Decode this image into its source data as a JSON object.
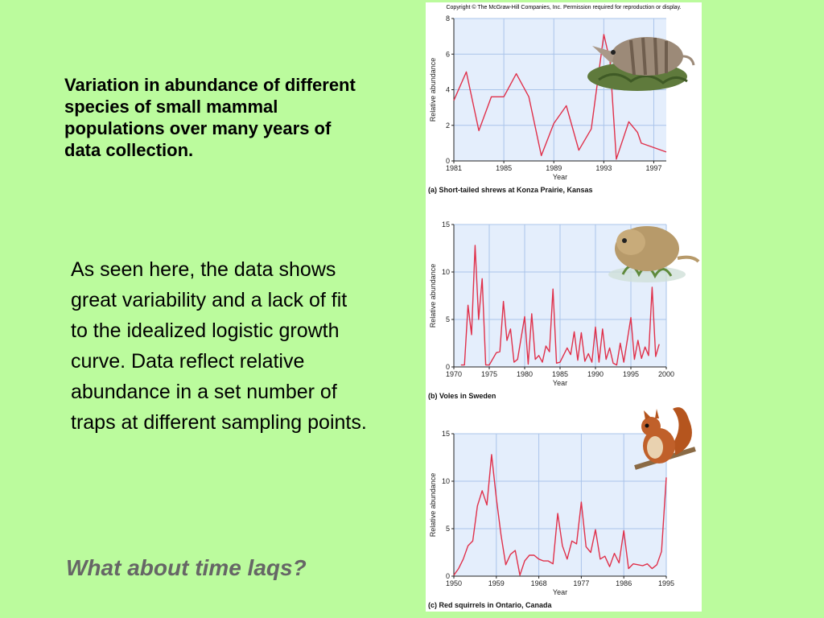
{
  "slide": {
    "heading": "Variation in abundance of different species of small mammal populations over many years of data collection.",
    "body": "As seen here, the data shows great variability and a lack of fit to the idealized logistic growth curve. Data reflect relative abundance in a set number of traps at different sampling points.",
    "question": "What about time laqs?",
    "background_color": "#bbfb9d"
  },
  "figure": {
    "copyright": "Copyright © The McGraw-Hill Companies, Inc. Permission required for reproduction or display."
  },
  "chart_data": [
    {
      "type": "line",
      "caption": "(a) Short-tailed shrews at Konza Prairie, Kansas",
      "xlabel": "Year",
      "ylabel": "Relative abundance",
      "xlim": [
        1981,
        1998
      ],
      "ylim": [
        0,
        8
      ],
      "xticks": [
        1981,
        1985,
        1989,
        1993,
        1997
      ],
      "yticks": [
        0,
        2,
        4,
        6,
        8
      ],
      "line_color": "#e0304a",
      "grid": true,
      "illustration": "shrew-icon",
      "series": [
        {
          "x": [
            1981,
            1982,
            1983,
            1984,
            1985,
            1986,
            1987,
            1988,
            1989,
            1990,
            1991,
            1992,
            1993,
            1993.5,
            1994,
            1995,
            1995.7,
            1996,
            1998
          ],
          "y": [
            3.4,
            5.0,
            1.7,
            3.6,
            3.6,
            4.9,
            3.6,
            0.3,
            2.1,
            3.1,
            0.6,
            1.8,
            7.1,
            5.6,
            0.1,
            2.2,
            1.6,
            1.0,
            0.5
          ]
        }
      ]
    },
    {
      "type": "line",
      "caption": "(b) Voles in Sweden",
      "xlabel": "Year",
      "ylabel": "Relative abundance",
      "xlim": [
        1970,
        2000
      ],
      "ylim": [
        0,
        15
      ],
      "xticks": [
        1970,
        1975,
        1980,
        1985,
        1990,
        1995,
        2000
      ],
      "yticks": [
        0,
        5,
        10,
        15
      ],
      "line_color": "#e0304a",
      "grid": true,
      "illustration": "vole-icon",
      "series": [
        {
          "x": [
            1971,
            1971.5,
            1972,
            1972.5,
            1973,
            1973.5,
            1974,
            1974.5,
            1975,
            1976,
            1976.5,
            1977,
            1977.5,
            1978,
            1978.5,
            1979,
            1980,
            1980.5,
            1981,
            1981.5,
            1982,
            1982.5,
            1983,
            1983.5,
            1984,
            1984.5,
            1985,
            1986,
            1986.5,
            1987,
            1987.5,
            1988,
            1988.5,
            1989,
            1989.5,
            1990,
            1990.5,
            1991,
            1991.5,
            1992,
            1992.5,
            1993,
            1993.5,
            1994,
            1995,
            1995.5,
            1996,
            1996.5,
            1997,
            1997.5,
            1998,
            1998.5,
            1999
          ],
          "y": [
            0.2,
            0.2,
            6.5,
            3.4,
            12.8,
            5.0,
            9.3,
            0.2,
            0.2,
            1.5,
            1.6,
            6.9,
            2.8,
            4.0,
            0.5,
            0.8,
            5.3,
            0.3,
            5.6,
            0.8,
            1.2,
            0.5,
            2.2,
            1.6,
            8.2,
            0.4,
            0.5,
            2.0,
            1.3,
            3.7,
            0.7,
            3.6,
            0.6,
            1.4,
            0.5,
            4.2,
            0.5,
            4.0,
            0.8,
            2.0,
            0.4,
            0.2,
            2.5,
            0.5,
            5.2,
            0.8,
            2.8,
            0.9,
            2.1,
            1.2,
            8.4,
            1.1,
            2.4
          ]
        }
      ]
    },
    {
      "type": "line",
      "caption": "(c) Red squirrels in Ontario, Canada",
      "xlabel": "Year",
      "ylabel": "Relative abundance",
      "xlim": [
        1950,
        1995
      ],
      "ylim": [
        0,
        15
      ],
      "xticks": [
        1950,
        1959,
        1968,
        1977,
        1986,
        1995
      ],
      "yticks": [
        0,
        5,
        10,
        15
      ],
      "line_color": "#e0304a",
      "grid": true,
      "illustration": "squirrel-icon",
      "series": [
        {
          "x": [
            1950,
            1951,
            1952,
            1953,
            1954,
            1955,
            1956,
            1957,
            1958,
            1959,
            1960,
            1961,
            1962,
            1963,
            1964,
            1965,
            1966,
            1967,
            1968,
            1969,
            1970,
            1971,
            1972,
            1973,
            1974,
            1975,
            1976,
            1977,
            1978,
            1979,
            1980,
            1981,
            1982,
            1983,
            1984,
            1985,
            1986,
            1987,
            1988,
            1989,
            1990,
            1991,
            1992,
            1993,
            1994,
            1995
          ],
          "y": [
            0.1,
            0.8,
            1.8,
            3.2,
            3.7,
            7.4,
            9.0,
            7.5,
            12.8,
            8.2,
            4.3,
            1.2,
            2.3,
            2.7,
            0.1,
            1.6,
            2.2,
            2.2,
            1.8,
            1.6,
            1.6,
            1.3,
            6.6,
            3.2,
            1.8,
            3.7,
            3.4,
            7.8,
            3.1,
            2.5,
            4.9,
            1.8,
            2.1,
            1.0,
            2.4,
            1.4,
            4.8,
            0.8,
            1.3,
            1.2,
            1.1,
            1.3,
            0.8,
            1.2,
            2.6,
            10.4
          ]
        }
      ]
    }
  ]
}
